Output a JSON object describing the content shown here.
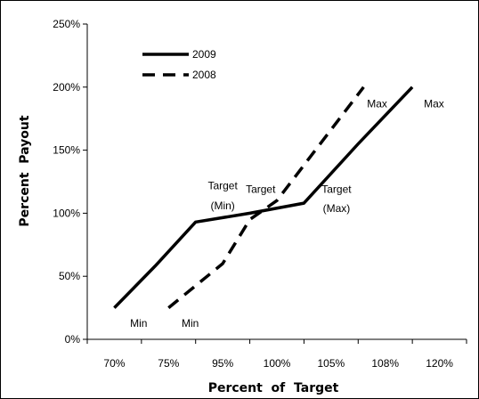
{
  "chart_data": {
    "type": "line",
    "categories": [
      "70%",
      "75%",
      "95%",
      "100%",
      "105%",
      "108%",
      "120%"
    ],
    "xlabel": "Percent  of  Target",
    "ylabel": "Percent  Payout",
    "y_ticks": [
      "0%",
      "50%",
      "100%",
      "150%",
      "200%",
      "250%"
    ],
    "ylim": [
      0,
      250
    ],
    "grid": false,
    "legend_position": "top-left",
    "series": [
      {
        "name": "2009",
        "style": "solid",
        "color": "#000000",
        "points": [
          [
            0,
            25
          ],
          [
            0.75,
            58
          ],
          [
            1.5,
            93
          ],
          [
            2.5,
            100
          ],
          [
            3.5,
            108
          ],
          [
            4.5,
            155
          ],
          [
            5.5,
            200
          ]
        ]
      },
      {
        "name": "2008",
        "style": "dashed",
        "color": "#000000",
        "points": [
          [
            1,
            25
          ],
          [
            2,
            60
          ],
          [
            2.5,
            95
          ],
          [
            3,
            110
          ],
          [
            4.6,
            200
          ]
        ]
      }
    ],
    "annotations": [
      {
        "text": "Min",
        "x": 0.45,
        "y": 10
      },
      {
        "text": "Min",
        "x": 1.4,
        "y": 10
      },
      {
        "text": "Target",
        "x": 2.0,
        "y": 119
      },
      {
        "text": "(Min)",
        "x": 2.0,
        "y": 103
      },
      {
        "text": "Target",
        "x": 2.7,
        "y": 116
      },
      {
        "text": "Target",
        "x": 4.1,
        "y": 116
      },
      {
        "text": "(Max)",
        "x": 4.1,
        "y": 101
      },
      {
        "text": "Max",
        "x": 4.85,
        "y": 184
      },
      {
        "text": "Max",
        "x": 5.9,
        "y": 184
      }
    ]
  }
}
